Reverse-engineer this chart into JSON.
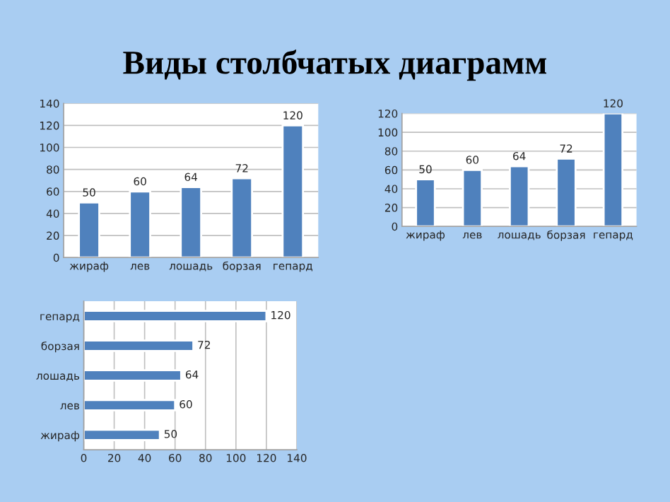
{
  "chart_data": [
    {
      "type": "bar",
      "title": "Виды столбчатых диаграмм",
      "categories": [
        "жираф",
        "лев",
        "лошадь",
        "борзая",
        "гепард"
      ],
      "values": [
        50,
        60,
        64,
        72,
        120
      ],
      "color": "#4f81bd",
      "ylim": [
        0,
        140
      ],
      "yticks": [
        0,
        20,
        40,
        60,
        80,
        100,
        120,
        140
      ],
      "grid": "y",
      "data_labels": true
    },
    {
      "type": "bar",
      "categories": [
        "жираф",
        "лев",
        "лошадь",
        "борзая",
        "гепард"
      ],
      "values": [
        50,
        60,
        64,
        72,
        120
      ],
      "color": "#4f81bd",
      "ylim": [
        0,
        120
      ],
      "yticks": [
        0,
        20,
        40,
        60,
        80,
        100,
        120
      ],
      "grid": "y",
      "data_labels": true
    },
    {
      "type": "bar",
      "orientation": "horizontal",
      "categories": [
        "гепард",
        "борзая",
        "лошадь",
        "лев",
        "жираф"
      ],
      "values": [
        120,
        72,
        64,
        60,
        50
      ],
      "color": "#4f81bd",
      "xlim": [
        0,
        140
      ],
      "xticks": [
        0,
        20,
        40,
        60,
        80,
        100,
        120,
        140
      ],
      "grid": "x",
      "data_labels": true
    }
  ]
}
